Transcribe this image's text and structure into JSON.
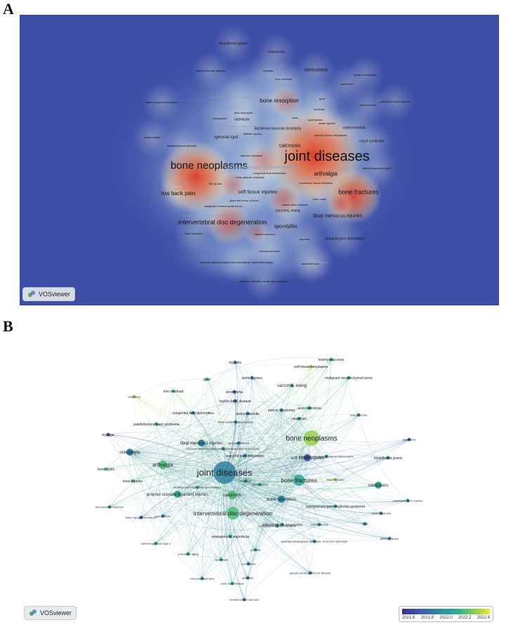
{
  "panels": {
    "a_label": "A",
    "b_label": "B"
  },
  "vosviewer_label": "VOSviewer",
  "density_terms": [
    {
      "text": "myasthenia gravis",
      "s": 5
    },
    {
      "text": "hematoma",
      "s": 5
    },
    {
      "text": "spinal muscular atrophy",
      "s": 4
    },
    {
      "text": "myalgia",
      "s": 4
    },
    {
      "text": "iron overload",
      "s": 4
    },
    {
      "text": "contusions",
      "s": 7
    },
    {
      "text": "sciatic neuropathy",
      "s": 4
    },
    {
      "text": "odontoma",
      "s": 4
    },
    {
      "text": "spondylolysis; spondylolisthesis; osteomalacia",
      "s": 4,
      "dim": true
    },
    {
      "text": "bone resorption",
      "s": 8
    },
    {
      "text": "gout",
      "s": 4
    },
    {
      "text": "scoliosis",
      "s": 4
    },
    {
      "text": "osteonecrosis",
      "s": 4
    },
    {
      "text": "peripheral nerve injuries",
      "s": 4
    },
    {
      "text": "farber lipogranulomatosis",
      "s": 4
    },
    {
      "text": "acro-osteolysis",
      "s": 4
    },
    {
      "text": "ankle injuries",
      "s": 4
    },
    {
      "text": "cysts",
      "s": 4
    },
    {
      "text": "osteolysis",
      "s": 5
    },
    {
      "text": "leiomyoma",
      "s": 4
    },
    {
      "text": "spondylosis",
      "s": 4
    },
    {
      "text": "myopathy with giant abnormal mitochondria",
      "s": 4,
      "dim": true
    },
    {
      "text": "duchenne muscular dystrophy",
      "s": 5
    },
    {
      "text": "osteochondritis",
      "s": 5
    },
    {
      "text": "tendinopathy",
      "s": 4
    },
    {
      "text": "adipose tissue neoplasms",
      "s": 4
    },
    {
      "text": "crush syndrome",
      "s": 5
    },
    {
      "text": "synovial cyst",
      "s": 6
    },
    {
      "text": "athletic injuries",
      "s": 4
    },
    {
      "text": "familial lumbar stenosis",
      "s": 4
    },
    {
      "text": "calcinosis",
      "s": 7
    },
    {
      "text": "joint diseases",
      "s": 20
    },
    {
      "text": "bone neoplasms",
      "s": 15
    },
    {
      "text": "vascular diseases",
      "s": 4
    },
    {
      "text": "anterior cruciate ligament injuries",
      "s": 7,
      "dim": true
    },
    {
      "text": "achondrogenesis type 2",
      "s": 4
    },
    {
      "text": "congenital limb deformities",
      "s": 4
    },
    {
      "text": "arthralgia",
      "s": 8
    },
    {
      "text": "extra-articular fractures",
      "s": 4
    },
    {
      "text": "connective tissue diseases",
      "s": 4
    },
    {
      "text": "osteoarthritis",
      "s": 4,
      "dim": true
    },
    {
      "text": "knee injuries",
      "s": 4,
      "dim": true
    },
    {
      "text": "rib injuries",
      "s": 4
    },
    {
      "text": "ankylosis",
      "s": 4,
      "dim": true
    },
    {
      "text": "bone fractures",
      "s": 9
    },
    {
      "text": "low back pain",
      "s": 8
    },
    {
      "text": "soft tissue injuries",
      "s": 7
    },
    {
      "text": "giant cell tumor of bone",
      "s": 4
    },
    {
      "text": "bone cysts",
      "s": 4
    },
    {
      "text": "malignant mesenchymal tumor",
      "s": 4
    },
    {
      "text": "sarcoma, ewing",
      "s": 5
    },
    {
      "text": "kashin-beck disease",
      "s": 4
    },
    {
      "text": "osteoporotic pseudoglioma syndrome",
      "s": 4,
      "dim": true
    },
    {
      "text": "tibial meniscus injuries",
      "s": 7
    },
    {
      "text": "intervertebral disc degeneration",
      "s": 9
    },
    {
      "text": "spondylitis",
      "s": 7
    },
    {
      "text": "tibial fractures",
      "s": 4
    },
    {
      "text": "osteoid osteoma",
      "s": 4
    },
    {
      "text": "myositis",
      "s": 4
    },
    {
      "text": "acquired joint deformities",
      "s": 5
    },
    {
      "text": "leiomyosarcoma",
      "s": 4
    },
    {
      "text": "classical lissencephalies and subcortical band heterotopias",
      "s": 4
    },
    {
      "text": "spondyloarthropathies",
      "s": 4,
      "dim": true
    },
    {
      "text": "osteosclerosis",
      "s": 4
    },
    {
      "text": "dwarfism-stiff joint-ocular abnormalities",
      "s": 4
    }
  ],
  "network_terms": [
    {
      "text": "myositis",
      "s": 5
    },
    {
      "text": "leiomyosarcoma",
      "s": 5
    },
    {
      "text": "soft tissue neoplasms",
      "s": 5
    },
    {
      "text": "gout",
      "s": 5
    },
    {
      "text": "ankle injuries",
      "s": 5
    },
    {
      "text": "malignant mesenchymal tumor",
      "s": 5
    },
    {
      "text": "iron overload",
      "s": 5
    },
    {
      "text": "leiomyoma",
      "s": 5
    },
    {
      "text": "sarcoma, ewing",
      "s": 6
    },
    {
      "text": "odontoma",
      "s": 4
    },
    {
      "text": "kashin-beck disease",
      "s": 5
    },
    {
      "text": "behcet syndrome",
      "s": 5
    },
    {
      "text": "acro-osteolysis",
      "s": 5
    },
    {
      "text": "congenital limb deformities",
      "s": 5
    },
    {
      "text": "osteochondritis",
      "s": 5
    },
    {
      "text": "osteonecrosis",
      "s": 4
    },
    {
      "text": "bone resorption spondylosis",
      "s": 4
    },
    {
      "text": "osteolysis",
      "s": 5
    },
    {
      "text": "patellofemoral pain syndrome",
      "s": 5
    },
    {
      "text": "hematoma",
      "s": 4
    },
    {
      "text": "myalgia",
      "s": 5
    },
    {
      "text": "tibial meniscus injuries",
      "s": 6
    },
    {
      "text": "spondylolisthesis",
      "s": 4
    },
    {
      "text": "bone neoplasms",
      "s": 10
    },
    {
      "text": "classical lissencephalies and subcortical band heterotopias",
      "s": 4
    },
    {
      "text": "osteophyte",
      "s": 6
    },
    {
      "text": "acquired joint deformities",
      "s": 5
    },
    {
      "text": "soft tissue injuries",
      "s": 6
    },
    {
      "text": "myasthenia gravis",
      "s": 5
    },
    {
      "text": "myopathy with giant abnormal mitochondria",
      "s": 4
    },
    {
      "text": "bone cysts",
      "s": 5
    },
    {
      "text": "arthralgia",
      "s": 7
    },
    {
      "text": "joint diseases",
      "s": 13
    },
    {
      "text": "bone fractures",
      "s": 8
    },
    {
      "text": "tibial fractures",
      "s": 4
    },
    {
      "text": "contusions",
      "s": 6
    },
    {
      "text": "knee injuries",
      "s": 5
    },
    {
      "text": "dwarfism-stiff joint-ocular abnormalities",
      "s": 4
    },
    {
      "text": "meniscal",
      "s": 4
    },
    {
      "text": "osteomalacia",
      "s": 4
    },
    {
      "text": "intra-articular fractures",
      "s": 4
    },
    {
      "text": "anterior cruciate ligament injuries",
      "s": 6
    },
    {
      "text": "calcinosis",
      "s": 6
    },
    {
      "text": "bone resorption",
      "s": 6
    },
    {
      "text": "osteoporosis-pseudoglioma syndrome",
      "s": 5
    },
    {
      "text": "peripheral nerve injuries",
      "s": 4
    },
    {
      "text": "farber lipogranulomatosis",
      "s": 4
    },
    {
      "text": "osteoarthritis",
      "s": 4
    },
    {
      "text": "intervertebral disc degeneration",
      "s": 8
    },
    {
      "text": "adipose tissue neoplasms",
      "s": 5
    },
    {
      "text": "musculoskeletal abnormalities",
      "s": 4
    },
    {
      "text": "crush syndrome",
      "s": 4
    },
    {
      "text": "osteosclerosis",
      "s": 4
    },
    {
      "text": "cysts",
      "s": 4
    },
    {
      "text": "osteogenesis imperfecta",
      "s": 5
    },
    {
      "text": "athletic injuries",
      "s": 4
    },
    {
      "text": "spondylometaphyseal dysplasia, short limb-hand type",
      "s": 4
    },
    {
      "text": "achondrogenesis type 2",
      "s": 4
    },
    {
      "text": "premature aging",
      "s": 4
    },
    {
      "text": "scoliosis",
      "s": 4
    },
    {
      "text": "hypoplasia",
      "s": 4
    },
    {
      "text": "spondylosis",
      "s": 4
    },
    {
      "text": "muscular dystrophy",
      "s": 4
    },
    {
      "text": "genetic predisposition to disease",
      "s": 4
    },
    {
      "text": "ankylosis",
      "s": 4
    },
    {
      "text": "axial osteomalacia",
      "s": 4
    },
    {
      "text": "familial lumbar stenosis",
      "s": 4
    }
  ],
  "legend": {
    "ticks": [
      "2021.6",
      "2021.8",
      "2022.0",
      "2022.2",
      "2022.4"
    ]
  },
  "colors": {
    "density_bg": "#3d4ea6",
    "density_hot": "#e0442c",
    "legend_low": "#3b2f8c",
    "legend_high": "#f2e831"
  }
}
